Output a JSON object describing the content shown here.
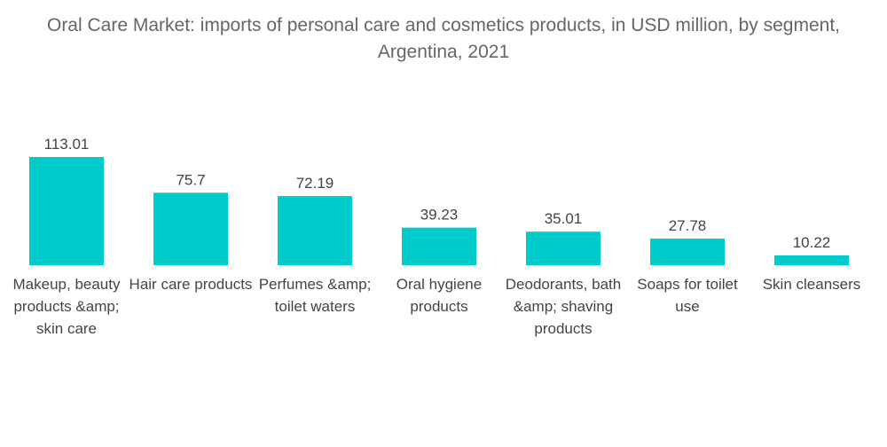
{
  "chart_data": {
    "type": "bar",
    "title": "Oral Care Market: imports of personal care and cosmetics products, in USD million, by segment, Argentina, 2021",
    "xlabel": "",
    "ylabel": "",
    "ylim": [
      0,
      113.01
    ],
    "grid": false,
    "legend": "none",
    "color": "#00CCCC",
    "categories": [
      "Makeup, beauty products &amp; skin care",
      "Hair care products",
      "Perfumes &amp; toilet waters",
      "Oral hygiene products",
      "Deodorants, bath &amp; shaving products",
      "Soaps for toilet use",
      "Skin cleansers"
    ],
    "values": [
      113.01,
      75.7,
      72.19,
      39.23,
      35.01,
      27.78,
      10.22
    ],
    "value_labels": [
      "113.01",
      "75.7",
      "72.19",
      "39.23",
      "35.01",
      "27.78",
      "10.22"
    ]
  }
}
